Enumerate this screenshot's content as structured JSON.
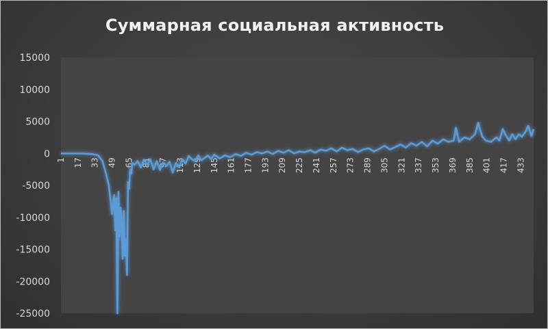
{
  "chart_data": {
    "type": "line",
    "title": "Суммарная социальная активность",
    "xlabel": "",
    "ylabel": "",
    "ylim": [
      -25000,
      15000
    ],
    "y_ticks": [
      15000,
      10000,
      5000,
      0,
      -5000,
      -10000,
      -15000,
      -20000,
      -25000
    ],
    "y_tick_labels": [
      "15000",
      "10000",
      "5000",
      "0",
      "-5000",
      "-10000",
      "-15000",
      "-20000",
      "-25000"
    ],
    "x_ticks": [
      1,
      17,
      33,
      49,
      65,
      81,
      97,
      113,
      129,
      145,
      161,
      177,
      193,
      209,
      225,
      241,
      257,
      273,
      289,
      305,
      321,
      337,
      353,
      369,
      385,
      401,
      417,
      433
    ],
    "x_tick_labels": [
      "1",
      "17",
      "33",
      "49",
      "65",
      "81",
      "97",
      "113",
      "129",
      "145",
      "161",
      "177",
      "193",
      "209",
      "225",
      "241",
      "257",
      "273",
      "289",
      "305",
      "321",
      "337",
      "353",
      "369",
      "385",
      "401",
      "417",
      "433"
    ],
    "xlim": [
      1,
      445
    ],
    "grid": false,
    "legend": "none",
    "series": [
      {
        "color": "#5b9bd5",
        "x": [
          1,
          10,
          20,
          30,
          36,
          40,
          43,
          46,
          48,
          49,
          51,
          52,
          53,
          54,
          55,
          56,
          57,
          58,
          59,
          60,
          61,
          62,
          63,
          64,
          65,
          66,
          67,
          68,
          70,
          73,
          76,
          79,
          82,
          85,
          88,
          91,
          94,
          97,
          100,
          103,
          106,
          109,
          112,
          115,
          118,
          121,
          124,
          127,
          130,
          133,
          136,
          139,
          142,
          145,
          150,
          155,
          160,
          165,
          170,
          175,
          180,
          185,
          190,
          195,
          200,
          205,
          210,
          215,
          220,
          225,
          230,
          235,
          240,
          245,
          250,
          255,
          260,
          265,
          270,
          275,
          280,
          285,
          290,
          295,
          300,
          305,
          310,
          315,
          320,
          325,
          330,
          335,
          340,
          345,
          350,
          355,
          360,
          365,
          370,
          372,
          375,
          380,
          385,
          390,
          393,
          395,
          397,
          400,
          405,
          410,
          413,
          416,
          419,
          422,
          425,
          428,
          431,
          434,
          437,
          440,
          443,
          445
        ],
        "y": [
          0,
          0,
          0,
          -100,
          -300,
          -1200,
          -3000,
          -5000,
          -8000,
          -9500,
          -6500,
          -12000,
          -7000,
          -25000,
          -6000,
          -13000,
          -8500,
          -11000,
          -16500,
          -9000,
          -16000,
          -13500,
          -19000,
          -4500,
          -5500,
          -2500,
          -3200,
          -1500,
          -1800,
          -1200,
          -2200,
          -1000,
          -1800,
          -900,
          -2500,
          -1200,
          -2600,
          -1400,
          -2000,
          -1300,
          -3000,
          -1500,
          -2200,
          -900,
          -1600,
          -400,
          -900,
          -1200,
          -300,
          -1100,
          -700,
          -300,
          -900,
          -200,
          -800,
          -300,
          -600,
          -100,
          -400,
          100,
          -200,
          200,
          0,
          300,
          -100,
          400,
          100,
          500,
          0,
          300,
          200,
          500,
          100,
          600,
          400,
          800,
          300,
          900,
          500,
          700,
          200,
          600,
          800,
          300,
          700,
          1200,
          600,
          1000,
          1400,
          900,
          1600,
          1200,
          1800,
          1100,
          2000,
          1500,
          2200,
          1800,
          2000,
          4000,
          1800,
          2500,
          2200,
          3000,
          4800,
          3500,
          2600,
          2000,
          1800,
          2500,
          2000,
          3800,
          2800,
          2000,
          3000,
          2200,
          3000,
          2600,
          3300,
          4300,
          2700,
          3800
        ]
      }
    ]
  }
}
